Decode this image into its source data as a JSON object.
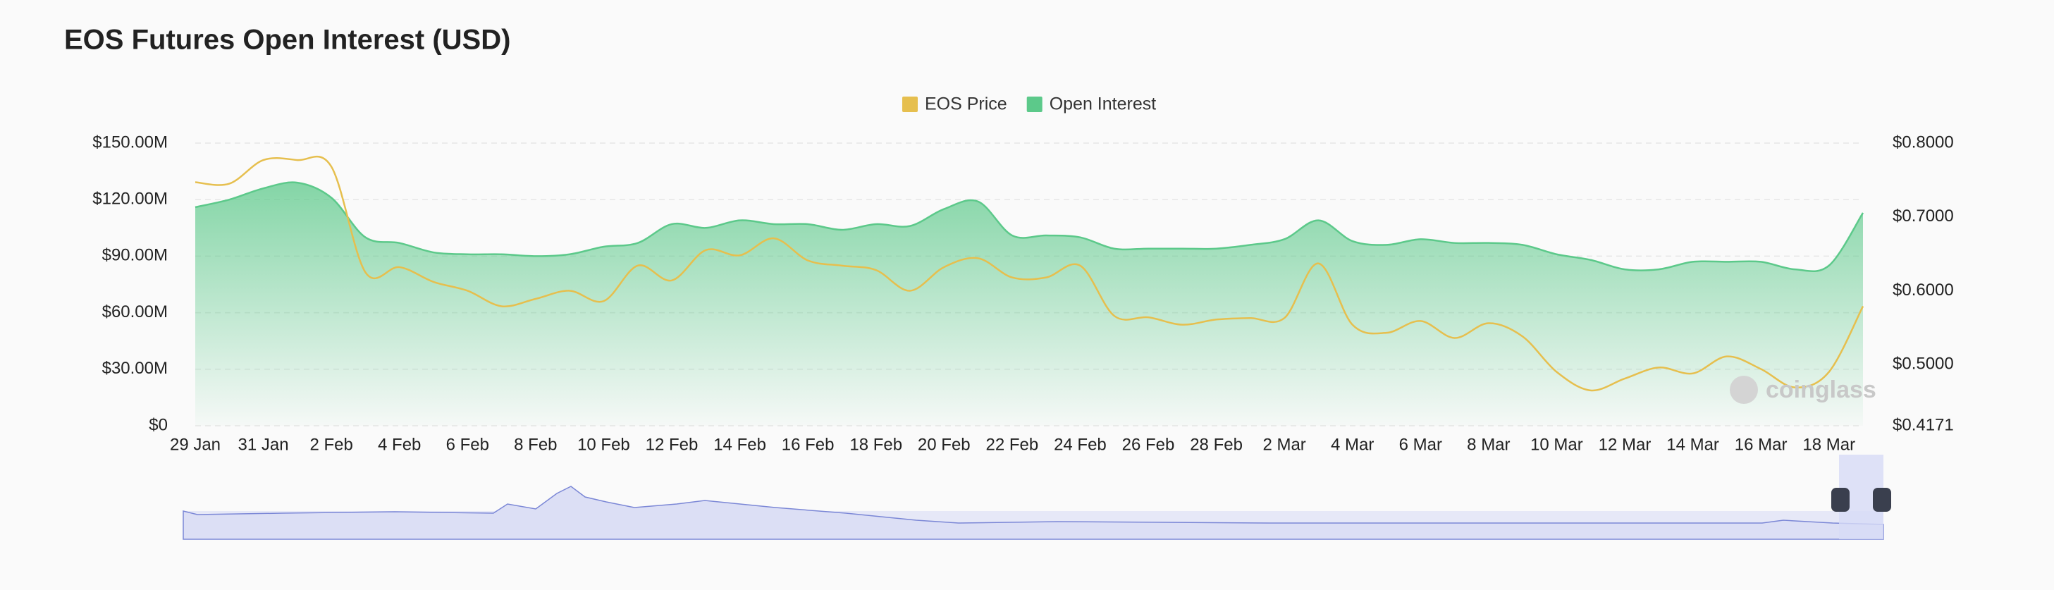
{
  "chart_data": {
    "type": "area-line",
    "title": "EOS Futures Open Interest (USD)",
    "watermark": "coinglass",
    "categories": [
      "29 Jan",
      null,
      "31 Jan",
      null,
      "2 Feb",
      null,
      "4 Feb",
      null,
      "6 Feb",
      null,
      "8 Feb",
      null,
      "10 Feb",
      null,
      "12 Feb",
      null,
      "14 Feb",
      null,
      "16 Feb",
      null,
      "18 Feb",
      null,
      "20 Feb",
      null,
      "22 Feb",
      null,
      "24 Feb",
      null,
      "26 Feb",
      null,
      "28 Feb",
      null,
      "2 Mar",
      null,
      "4 Mar",
      null,
      "6 Mar",
      null,
      "8 Mar",
      null,
      "10 Mar",
      null,
      "12 Mar",
      null,
      "14 Mar",
      null,
      "16 Mar",
      null,
      "18 Mar",
      null
    ],
    "series": [
      {
        "name": "EOS Price",
        "color": "#e6bf4e",
        "axis": "y2",
        "values": [
          0.747,
          0.745,
          0.777,
          0.777,
          0.768,
          0.625,
          0.632,
          0.612,
          0.6,
          0.579,
          0.589,
          0.6,
          0.586,
          0.634,
          0.614,
          0.655,
          0.648,
          0.671,
          0.641,
          0.634,
          0.628,
          0.6,
          0.632,
          0.644,
          0.618,
          0.618,
          0.634,
          0.566,
          0.564,
          0.554,
          0.561,
          0.563,
          0.563,
          0.637,
          0.554,
          0.543,
          0.559,
          0.536,
          0.556,
          0.538,
          0.49,
          0.465,
          0.481,
          0.496,
          0.488,
          0.511,
          0.494,
          0.469,
          0.49,
          0.579
        ]
      },
      {
        "name": "Open Interest",
        "color": "#5cc98a",
        "values": [
          116,
          120,
          126,
          129,
          121,
          100,
          97,
          92,
          91,
          91,
          90,
          91,
          95,
          97,
          107,
          105,
          109,
          107,
          107,
          104,
          107,
          106,
          115,
          119,
          101,
          101,
          100,
          94,
          94,
          94,
          94,
          96,
          99,
          109,
          98,
          96,
          99,
          97,
          97,
          96,
          91,
          88,
          83,
          83,
          87,
          87,
          87,
          83,
          85,
          113
        ]
      }
    ],
    "ylim": [
      0,
      150
    ],
    "yticks": [
      {
        "value": 0,
        "label": "$0"
      },
      {
        "value": 30,
        "label": "$30.00M"
      },
      {
        "value": 60,
        "label": "$60.00M"
      },
      {
        "value": 90,
        "label": "$90.00M"
      },
      {
        "value": 120,
        "label": "$120.00M"
      },
      {
        "value": 150,
        "label": "$150.00M"
      }
    ],
    "y2lim": [
      0.4171,
      0.8
    ],
    "y2ticks": [
      {
        "value": 0.4171,
        "label": "$0.4171"
      },
      {
        "value": 0.5,
        "label": "$0.5000"
      },
      {
        "value": 0.6,
        "label": "$0.6000"
      },
      {
        "value": 0.7,
        "label": "$0.7000"
      },
      {
        "value": 0.8,
        "label": "$0.8000"
      }
    ],
    "grid": true,
    "legend": "top"
  }
}
